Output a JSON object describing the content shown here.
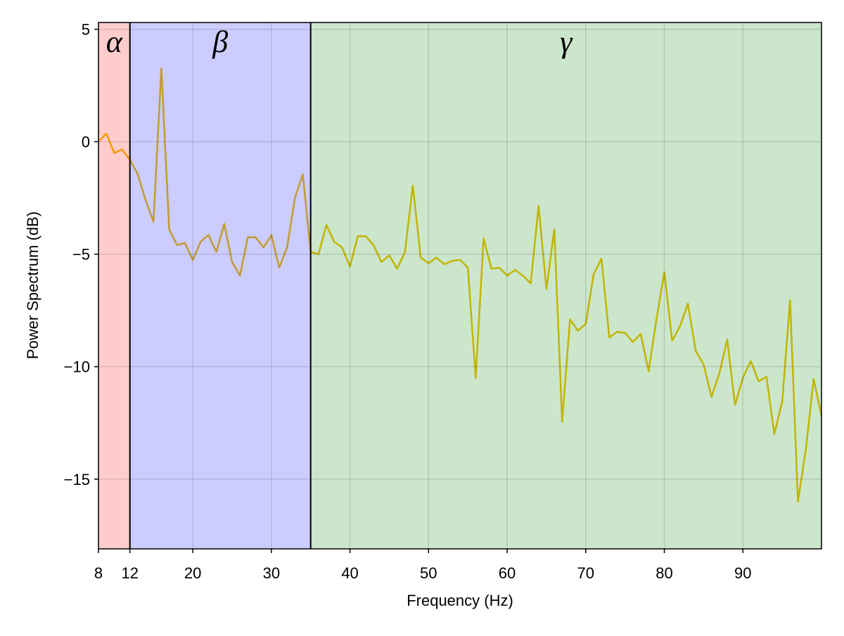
{
  "chart_data": {
    "type": "line",
    "x_label": "Frequency (Hz)",
    "y_label": "Power Spectrum (dB)",
    "xlim": [
      8,
      100
    ],
    "ylim": [
      -18.1,
      5.3
    ],
    "xticks": [
      8,
      12,
      20,
      30,
      40,
      50,
      60,
      70,
      80,
      90
    ],
    "yticks": [
      {
        "value": -15,
        "label": "−15"
      },
      {
        "value": -10,
        "label": "−10"
      },
      {
        "value": -5,
        "label": "−5"
      },
      0,
      5
    ],
    "grid": true,
    "bands": [
      {
        "name": "α",
        "start": 8,
        "end": 12,
        "color": "#ff0000"
      },
      {
        "name": "β",
        "start": 12,
        "end": 35,
        "color": "#0000ff"
      },
      {
        "name": "γ",
        "start": 35,
        "end": 100,
        "color": "#008000"
      }
    ],
    "x": [
      8,
      9,
      10,
      11,
      12,
      13,
      14,
      15,
      16,
      17,
      18,
      19,
      20,
      21,
      22,
      23,
      24,
      25,
      26,
      27,
      28,
      29,
      30,
      31,
      32,
      33,
      34,
      35,
      36,
      37,
      38,
      39,
      40,
      41,
      42,
      43,
      44,
      45,
      46,
      47,
      48,
      49,
      50,
      51,
      52,
      53,
      54,
      55,
      56,
      57,
      58,
      59,
      60,
      61,
      62,
      63,
      64,
      65,
      66,
      67,
      68,
      69,
      70,
      71,
      72,
      73,
      74,
      75,
      76,
      77,
      78,
      79,
      80,
      81,
      82,
      83,
      84,
      85,
      86,
      87,
      88,
      89,
      90,
      91,
      92,
      93,
      94,
      95,
      96,
      97,
      98,
      99,
      100
    ],
    "series": [
      {
        "color": "#f2c200",
        "values": [
          0,
          0.37,
          -0.5,
          -0.35,
          -0.8,
          -1.45,
          -2.6,
          -3.55,
          3.25,
          -3.9,
          -4.6,
          -4.5,
          -5.25,
          -4.45,
          -4.15,
          -4.9,
          -3.65,
          -5.35,
          -5.95,
          -4.25,
          -4.25,
          -4.7,
          -4.15,
          -5.6,
          -4.7,
          -2.5,
          -1.45,
          -4.9,
          -5.0,
          -3.7,
          -4.45,
          -4.7,
          -5.55,
          -4.2,
          -4.2,
          -4.6,
          -5.35,
          -5.05,
          -5.65,
          -4.9,
          -1.95,
          -5.15,
          -5.4,
          -5.15,
          -5.45,
          -5.3,
          -5.25,
          -5.6,
          -10.5,
          -4.3,
          -5.65,
          -5.6,
          -5.95,
          -5.7,
          -5.95,
          -6.3,
          -2.85,
          -6.55,
          -3.9,
          -12.45,
          -7.9,
          -8.4,
          -8.1,
          -5.9,
          -5.2,
          -8.7,
          -8.45,
          -8.5,
          -8.9,
          -8.55,
          -10.2,
          -7.9,
          -5.8,
          -8.85,
          -8.2,
          -7.2,
          -9.3,
          -9.9,
          -11.35,
          -10.3,
          -8.8,
          -11.7,
          -10.5,
          -9.75,
          -10.65,
          -10.45,
          -13.0,
          -11.55,
          -7.05,
          -16.0,
          -13.7,
          -10.55,
          -12.2
        ]
      }
    ]
  }
}
